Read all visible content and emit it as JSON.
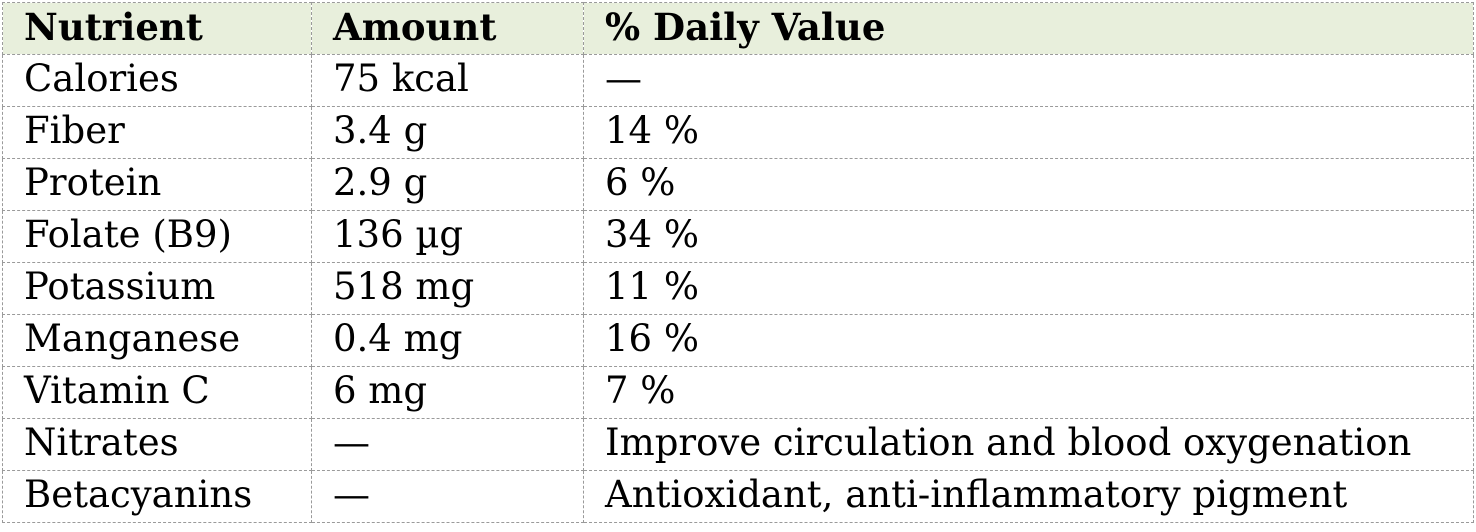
{
  "table": {
    "title": "nutrition-facts-table",
    "columns": [
      {
        "label": "Nutrient"
      },
      {
        "label": "Amount"
      },
      {
        "label": "% Daily Value"
      }
    ],
    "rows": [
      {
        "nutrient": "Calories",
        "amount": "75 kcal",
        "daily_value": "—"
      },
      {
        "nutrient": "Fiber",
        "amount": "3.4 g",
        "daily_value": "14 %"
      },
      {
        "nutrient": "Protein",
        "amount": "2.9 g",
        "daily_value": "6 %"
      },
      {
        "nutrient": "Folate (B9)",
        "amount": "136 µg",
        "daily_value": "34 %"
      },
      {
        "nutrient": "Potassium",
        "amount": "518 mg",
        "daily_value": "11 %"
      },
      {
        "nutrient": "Manganese",
        "amount": "0.4 mg",
        "daily_value": "16 %"
      },
      {
        "nutrient": "Vitamin C",
        "amount": "6 mg",
        "daily_value": "7 %"
      },
      {
        "nutrient": "Nitrates",
        "amount": "—",
        "daily_value": "Improve circulation and blood oxygenation"
      },
      {
        "nutrient": "Betacyanins",
        "amount": "—",
        "daily_value": "Antioxidant, anti-inflammatory pigment"
      }
    ],
    "colors": {
      "header_background": "#e8efdc",
      "border": "#9a9a9a",
      "text": "#000000"
    }
  }
}
